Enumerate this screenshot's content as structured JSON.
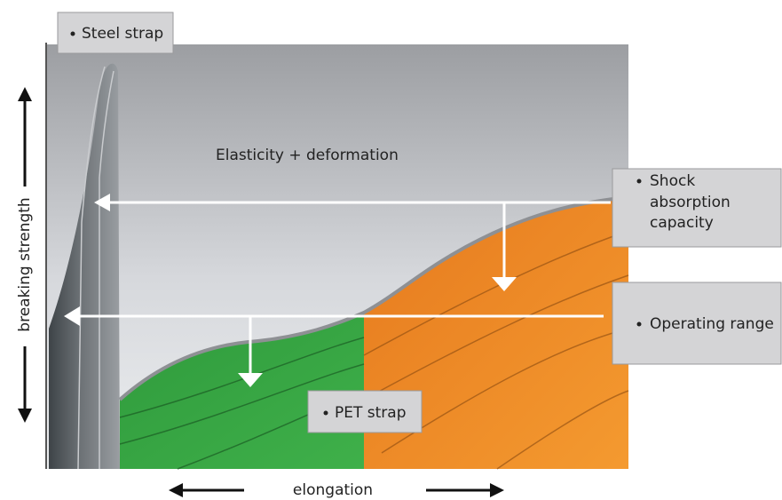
{
  "diagram": {
    "labels": {
      "steel_strap": "Steel strap",
      "elasticity": "Elasticity + deformation",
      "shock_absorption": [
        "Shock",
        "absorption",
        "capacity"
      ],
      "operating_range": "Operating range",
      "pet_strap": "PET strap"
    },
    "axes": {
      "y_label": "breaking strength",
      "x_label": "elongation"
    }
  }
}
